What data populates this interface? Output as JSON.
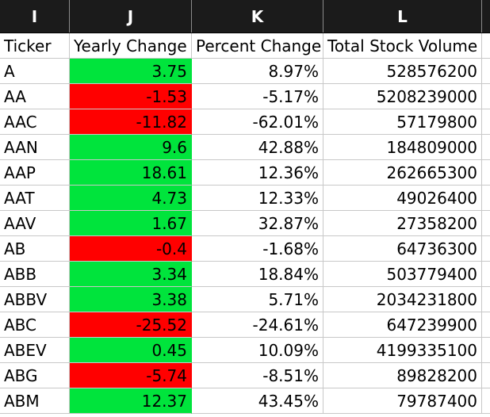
{
  "columns": [
    "I",
    "J",
    "K",
    "L"
  ],
  "headers": [
    "Ticker",
    "Yearly Change",
    "Percent Change",
    "Total Stock Volume"
  ],
  "colors": {
    "positive": "#00e43c",
    "negative": "#ff0000",
    "header_bg": "#1b1b1b"
  },
  "rows": [
    {
      "ticker": "A",
      "yearly_change": "3.75",
      "percent_change": "8.97%",
      "total_volume": "528576200",
      "status": "pos"
    },
    {
      "ticker": "AA",
      "yearly_change": "-1.53",
      "percent_change": "-5.17%",
      "total_volume": "5208239000",
      "status": "neg"
    },
    {
      "ticker": "AAC",
      "yearly_change": "-11.82",
      "percent_change": "-62.01%",
      "total_volume": "57179800",
      "status": "neg"
    },
    {
      "ticker": "AAN",
      "yearly_change": "9.6",
      "percent_change": "42.88%",
      "total_volume": "184809000",
      "status": "pos"
    },
    {
      "ticker": "AAP",
      "yearly_change": "18.61",
      "percent_change": "12.36%",
      "total_volume": "262665300",
      "status": "pos"
    },
    {
      "ticker": "AAT",
      "yearly_change": "4.73",
      "percent_change": "12.33%",
      "total_volume": "49026400",
      "status": "pos"
    },
    {
      "ticker": "AAV",
      "yearly_change": "1.67",
      "percent_change": "32.87%",
      "total_volume": "27358200",
      "status": "pos"
    },
    {
      "ticker": "AB",
      "yearly_change": "-0.4",
      "percent_change": "-1.68%",
      "total_volume": "64736300",
      "status": "neg"
    },
    {
      "ticker": "ABB",
      "yearly_change": "3.34",
      "percent_change": "18.84%",
      "total_volume": "503779400",
      "status": "pos"
    },
    {
      "ticker": "ABBV",
      "yearly_change": "3.38",
      "percent_change": "5.71%",
      "total_volume": "2034231800",
      "status": "pos"
    },
    {
      "ticker": "ABC",
      "yearly_change": "-25.52",
      "percent_change": "-24.61%",
      "total_volume": "647239900",
      "status": "neg"
    },
    {
      "ticker": "ABEV",
      "yearly_change": "0.45",
      "percent_change": "10.09%",
      "total_volume": "4199335100",
      "status": "pos"
    },
    {
      "ticker": "ABG",
      "yearly_change": "-5.74",
      "percent_change": "-8.51%",
      "total_volume": "89828200",
      "status": "neg"
    },
    {
      "ticker": "ABM",
      "yearly_change": "12.37",
      "percent_change": "43.45%",
      "total_volume": "79787400",
      "status": "pos"
    }
  ]
}
